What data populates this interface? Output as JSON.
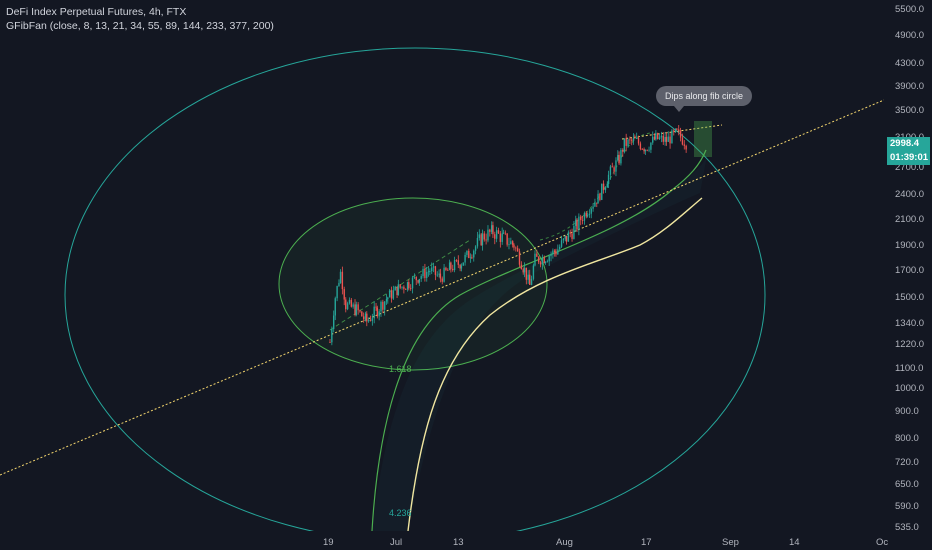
{
  "legend": {
    "title": "DeFi Index Perpetual Futures, 4h, FTX",
    "indicator": "GFibFan (close, 8, 13, 21, 34, 55, 89, 144, 233, 377, 200)"
  },
  "callout": {
    "text": "Dips along fib circle"
  },
  "price_tags": {
    "last_price": "2998.4",
    "countdown": "01:39:01"
  },
  "fib_labels": {
    "inner": "1.618",
    "outer": "4.236"
  },
  "colors": {
    "background": "#131722",
    "bull": "#26a69a",
    "bear": "#ef5350",
    "fib_circle_outer": "#26a69a",
    "fib_circle_inner": "#4caf50",
    "fib_arc_yellow": "#f0e6a0",
    "trendline": "#f5d76e",
    "price_tag": "#26a69a"
  },
  "chart_data": {
    "type": "candlestick",
    "symbol": "DeFi Index Perpetual Futures",
    "interval": "4h",
    "exchange": "FTX",
    "price_scale": "log",
    "y_ticks": [
      5500,
      4900,
      4300,
      3900,
      3500,
      3100,
      2700,
      2400,
      2100,
      1900,
      1700,
      1500,
      1340,
      1220,
      1100,
      1000,
      900,
      800,
      720,
      650,
      590,
      535
    ],
    "y_tick_labels": [
      "5500.0",
      "4900.0",
      "4300.0",
      "3900.0",
      "3500.0",
      "3100.0",
      "2700.0",
      "2400.0",
      "2100.0",
      "1900.0",
      "1700.0",
      "1500.0",
      "1340.0",
      "1220.0",
      "1100.0",
      "1000.0",
      "900.0",
      "800.0",
      "720.0",
      "650.0",
      "590.0",
      "535.0"
    ],
    "x_tick_labels": [
      "19",
      "Jul",
      "13",
      "Aug",
      "17",
      "Sep",
      "14",
      "Oc"
    ],
    "last_price": 2998.4,
    "price_path": [
      [
        "06-19",
        1230
      ],
      [
        "06-20",
        1500
      ],
      [
        "06-21",
        1680
      ],
      [
        "06-22",
        1450
      ],
      [
        "06-24",
        1420
      ],
      [
        "06-26",
        1350
      ],
      [
        "06-28",
        1420
      ],
      [
        "06-30",
        1500
      ],
      [
        "07-02",
        1560
      ],
      [
        "07-04",
        1600
      ],
      [
        "07-06",
        1650
      ],
      [
        "07-08",
        1700
      ],
      [
        "07-10",
        1640
      ],
      [
        "07-12",
        1720
      ],
      [
        "07-14",
        1760
      ],
      [
        "07-16",
        1850
      ],
      [
        "07-18",
        1960
      ],
      [
        "07-20",
        2000
      ],
      [
        "07-22",
        1950
      ],
      [
        "07-24",
        1900
      ],
      [
        "07-26",
        1700
      ],
      [
        "07-27",
        1580
      ],
      [
        "07-28",
        1780
      ],
      [
        "07-30",
        1800
      ],
      [
        "08-01",
        1850
      ],
      [
        "08-03",
        1950
      ],
      [
        "08-05",
        2050
      ],
      [
        "08-07",
        2200
      ],
      [
        "08-09",
        2350
      ],
      [
        "08-11",
        2600
      ],
      [
        "08-13",
        2800
      ],
      [
        "08-14",
        3000
      ],
      [
        "08-16",
        3050
      ],
      [
        "08-18",
        2950
      ],
      [
        "08-20",
        3080
      ],
      [
        "08-22",
        3050
      ],
      [
        "08-24",
        3150
      ],
      [
        "08-26",
        2998.4
      ]
    ]
  }
}
